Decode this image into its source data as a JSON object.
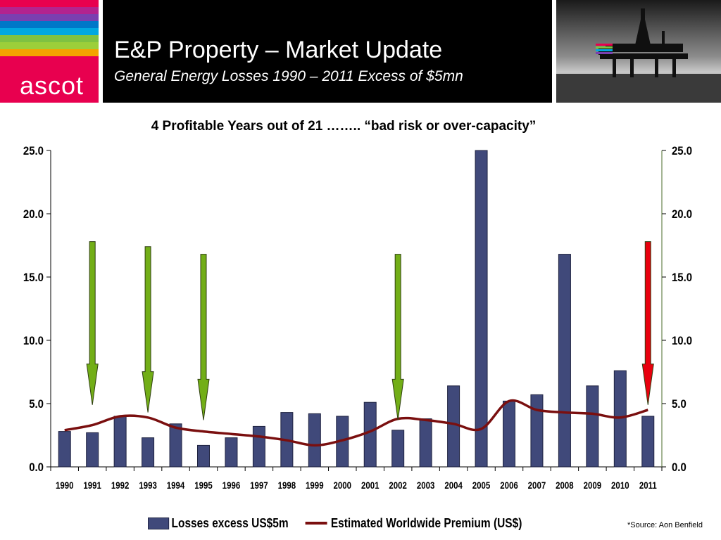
{
  "header": {
    "logo_text": "ascot",
    "title": "E&P Property – Market Update",
    "subtitle": "General Energy Losses 1990 – 2011 Excess of $5mn",
    "logo_stripe_colors": [
      "#e8004f",
      "#b3238f",
      "#7b3fb0",
      "#0077c8",
      "#00a8e0",
      "#7fc241",
      "#9ccf3a",
      "#f4a300",
      "#e8004f",
      "#e8004f"
    ]
  },
  "photo": {
    "icon": "oil-platform-photo"
  },
  "chart_title": "4 Profitable Years out of 21 …….. “bad risk or over-capacity”",
  "chart_data": {
    "type": "bar",
    "categories": [
      "1990",
      "1991",
      "1992",
      "1993",
      "1994",
      "1995",
      "1996",
      "1997",
      "1998",
      "1999",
      "2000",
      "2001",
      "2002",
      "2003",
      "2004",
      "2005",
      "2006",
      "2007",
      "2008",
      "2009",
      "2010",
      "2011"
    ],
    "series": [
      {
        "name": "Losses excess US$5m",
        "type": "bar",
        "color": "#40497a",
        "values": [
          2.8,
          2.7,
          4.0,
          2.3,
          3.4,
          1.7,
          2.3,
          3.2,
          4.3,
          4.2,
          4.0,
          5.1,
          2.9,
          3.8,
          6.4,
          25.0,
          5.2,
          5.7,
          16.8,
          6.4,
          7.6,
          4.0
        ]
      },
      {
        "name": "Estimated Worldwide Premium (US$)",
        "type": "line",
        "color": "#7a0f0f",
        "values": [
          2.9,
          3.3,
          4.0,
          3.9,
          3.1,
          2.8,
          2.6,
          2.4,
          2.1,
          1.7,
          2.1,
          2.8,
          3.8,
          3.7,
          3.4,
          3.0,
          5.2,
          4.5,
          4.3,
          4.2,
          3.9,
          4.5
        ]
      }
    ],
    "ylim": [
      0,
      25
    ],
    "yticks": [
      "0.0",
      "5.0",
      "10.0",
      "15.0",
      "20.0",
      "25.0"
    ],
    "secondary_yticks": [
      "0.0",
      "5.0",
      "10.0",
      "15.0",
      "20.0",
      "25.0"
    ],
    "annotations": [
      {
        "type": "arrow",
        "category": "1991",
        "color": "#72ae17",
        "from": 17.8,
        "to": 4.9
      },
      {
        "type": "arrow",
        "category": "1993",
        "color": "#72ae17",
        "from": 17.4,
        "to": 4.3
      },
      {
        "type": "arrow",
        "category": "1995",
        "color": "#72ae17",
        "from": 16.8,
        "to": 3.7
      },
      {
        "type": "arrow",
        "category": "2002",
        "color": "#72ae17",
        "from": 16.8,
        "to": 3.7
      },
      {
        "type": "arrow",
        "category": "2011",
        "color": "#e8000e",
        "from": 17.8,
        "to": 4.9
      }
    ],
    "legend_position": "bottom",
    "grid": false
  },
  "legend": {
    "bar_label": "Losses excess US$5m",
    "line_label": "Estimated Worldwide Premium (US$)"
  },
  "source": "*Source: Aon Benfield"
}
